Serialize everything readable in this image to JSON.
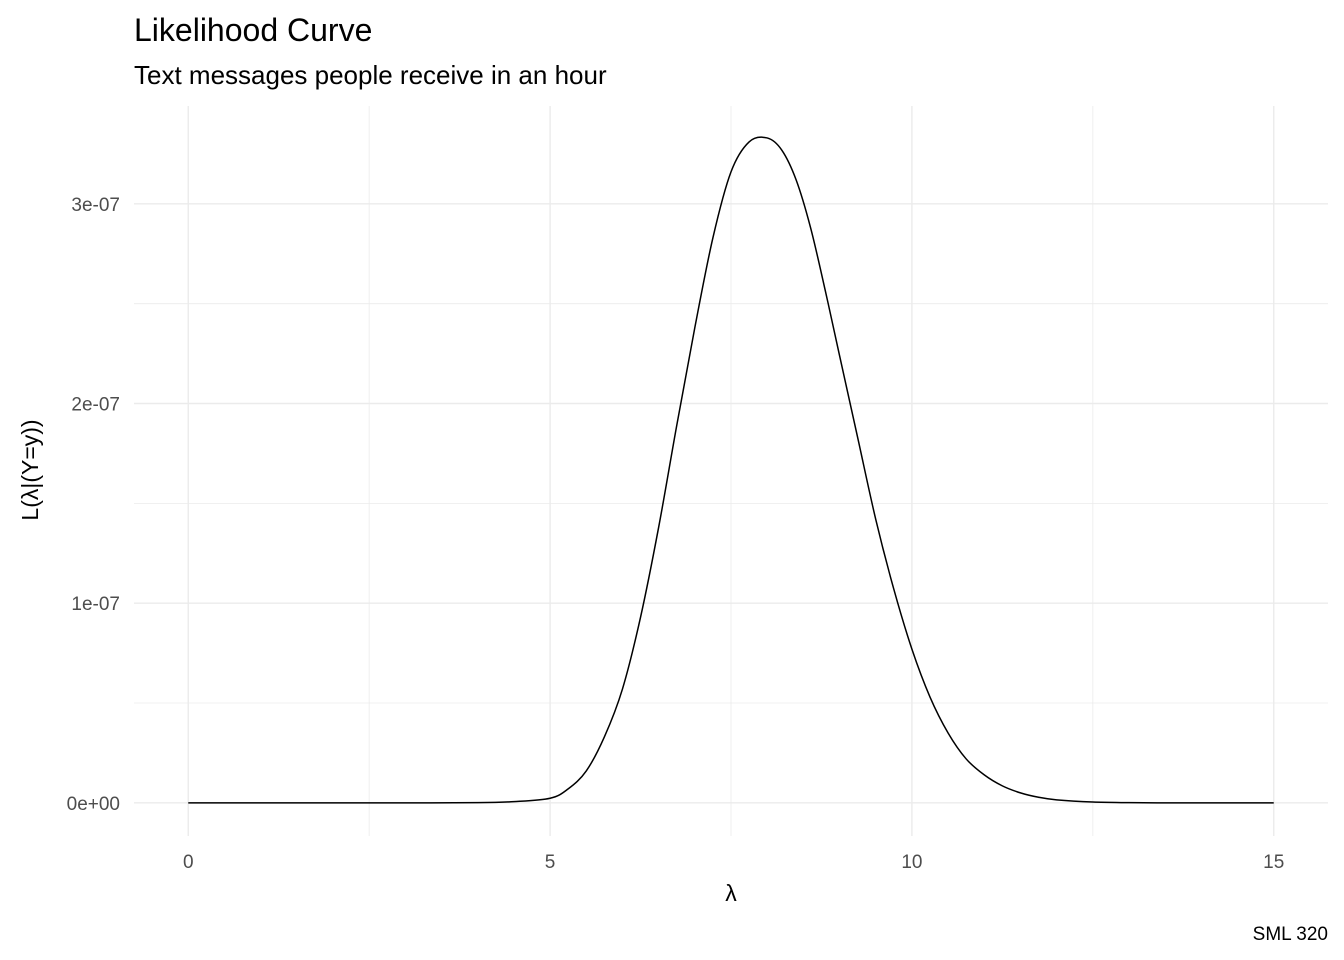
{
  "chart_data": {
    "type": "line",
    "title": "Likelihood Curve",
    "subtitle": "Text messages people receive in an hour",
    "xlabel": "λ",
    "ylabel": "L(λ|(Y=y))",
    "caption": "SML 320",
    "xlim": [
      -0.75,
      15.75
    ],
    "ylim": [
      -1.66e-08,
      3.49e-07
    ],
    "x_ticks": [
      0,
      5,
      10,
      15
    ],
    "x_tick_labels": [
      "0",
      "5",
      "10",
      "15"
    ],
    "x_minor_ticks": [
      2.5,
      7.5,
      12.5
    ],
    "y_ticks": [
      0,
      1e-07,
      2e-07,
      3e-07
    ],
    "y_tick_labels": [
      "0e+00",
      "1e-07",
      "2e-07",
      "3e-07"
    ],
    "y_minor_ticks": [
      5e-08,
      1.5e-07,
      2.5e-07
    ],
    "grid": true,
    "legend": "none",
    "series": [
      {
        "color": "#000000",
        "x": [
          0,
          1,
          2,
          3,
          4,
          4.5,
          5,
          5.25,
          5.5,
          5.75,
          6,
          6.25,
          6.5,
          6.75,
          7,
          7.25,
          7.5,
          7.75,
          8,
          8.2,
          8.4,
          8.6,
          8.8,
          9,
          9.25,
          9.5,
          9.75,
          10,
          10.25,
          10.5,
          10.75,
          11,
          11.25,
          11.5,
          11.75,
          12,
          12.5,
          13,
          13.5,
          14,
          15
        ],
        "y": [
          0,
          0,
          0,
          0,
          1e-10,
          6e-10,
          2.3e-09,
          7e-09,
          1.6e-08,
          3.3e-08,
          5.7e-08,
          9.3e-08,
          1.38e-07,
          1.89e-07,
          2.38e-07,
          2.83e-07,
          3.16e-07,
          3.31e-07,
          3.33e-07,
          3.27e-07,
          3.12e-07,
          2.88e-07,
          2.57e-07,
          2.24e-07,
          1.83e-07,
          1.42e-07,
          1.07e-07,
          7.7e-08,
          5.3e-08,
          3.5e-08,
          2.2e-08,
          1.4e-08,
          8.5e-09,
          5e-09,
          2.8e-09,
          1.5e-09,
          4e-10,
          1e-10,
          0,
          0,
          0
        ]
      }
    ]
  }
}
